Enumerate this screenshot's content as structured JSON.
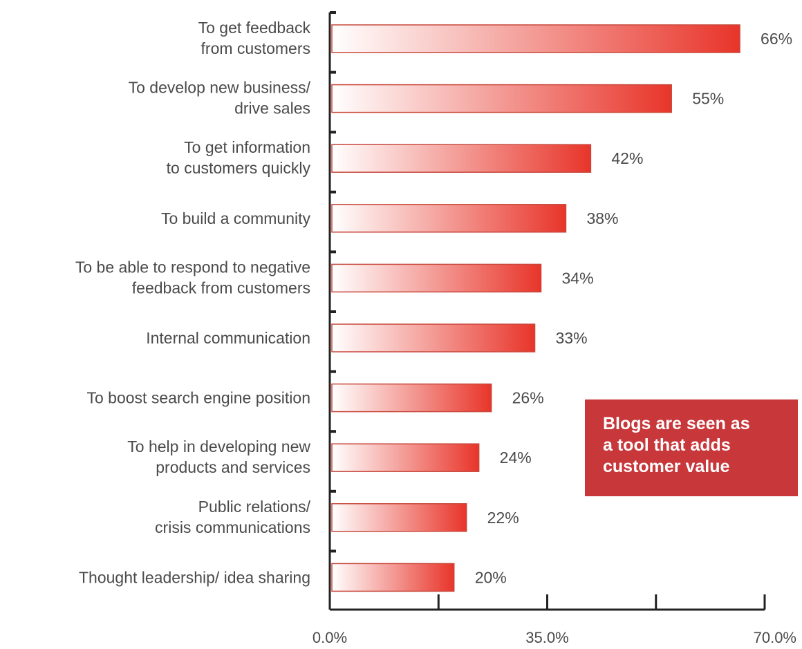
{
  "colors": {
    "bar_start": "#ffffff",
    "bar_end": "#e8352a",
    "bar_outline": "#c8483c",
    "axis": "#222222",
    "text": "#4a4a4a",
    "callout_bg": "#c8373a",
    "callout_text": "#ffffff"
  },
  "chart_data": {
    "type": "bar",
    "orientation": "horizontal",
    "categories": [
      [
        "To get feedback",
        "from customers"
      ],
      [
        "To develop new business/",
        "drive sales"
      ],
      [
        "To get information",
        "to customers quickly"
      ],
      [
        "To build a community"
      ],
      [
        "To be able to respond to negative",
        "feedback from customers"
      ],
      [
        "Internal communication"
      ],
      [
        "To boost search engine position"
      ],
      [
        "To help in developing new",
        "products and services"
      ],
      [
        "Public relations/",
        "crisis communications"
      ],
      [
        "Thought leadership/ idea sharing"
      ]
    ],
    "values": [
      66,
      55,
      42,
      38,
      34,
      33,
      26,
      24,
      22,
      20
    ],
    "value_labels": [
      "66%",
      "55%",
      "42%",
      "38%",
      "34%",
      "33%",
      "26%",
      "24%",
      "22%",
      "20%"
    ],
    "xlim": [
      0,
      70
    ],
    "x_ticks": [
      0,
      17.5,
      35,
      52.5,
      70
    ],
    "x_tick_labels": [
      "0.0%",
      "",
      "35.0%",
      "",
      "70.0%"
    ],
    "title": "",
    "xlabel": "",
    "ylabel": "",
    "grid": false,
    "legend": "none"
  },
  "callout": {
    "lines": [
      "Blogs are seen as",
      "a tool that adds",
      "customer value"
    ]
  }
}
